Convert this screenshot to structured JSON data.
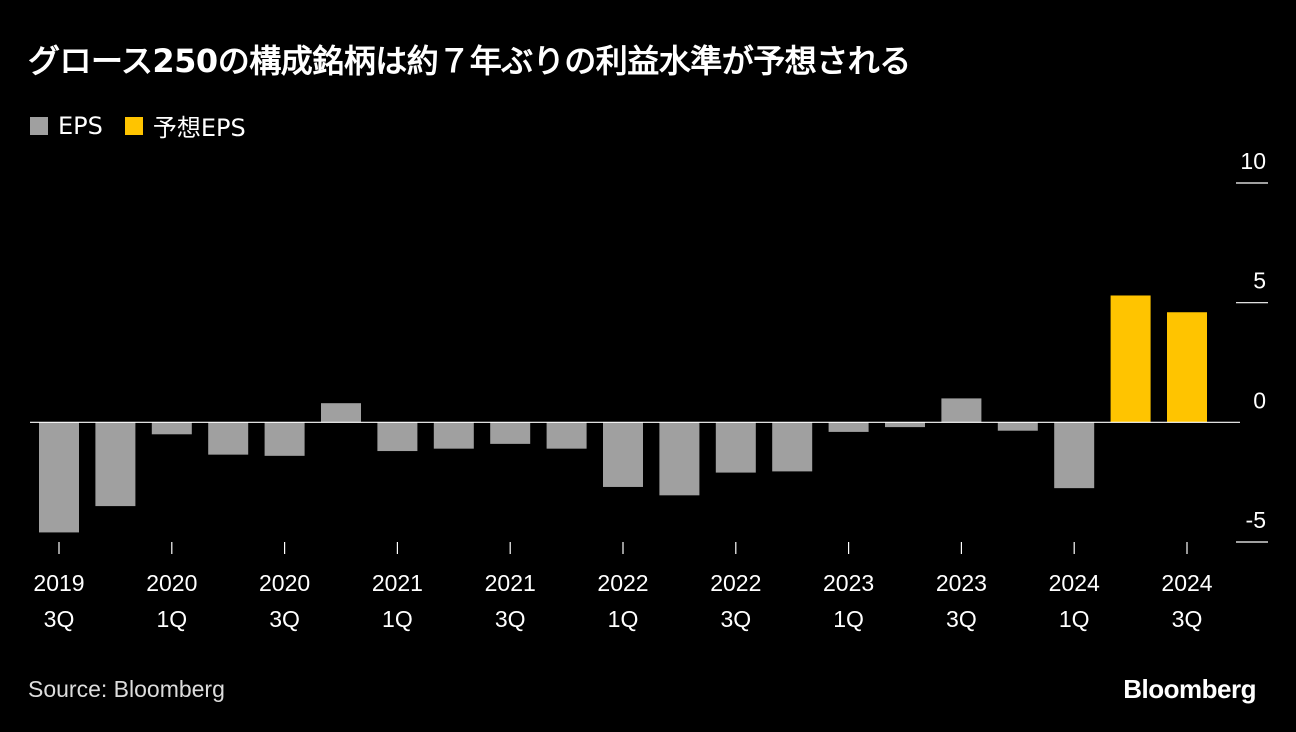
{
  "title": "グロース250の構成銘柄は約７年ぶりの利益水準が予想される",
  "legend": [
    {
      "label": "EPS",
      "color": "#a0a0a0"
    },
    {
      "label": "予想EPS",
      "color": "#ffc400"
    }
  ],
  "source": "Source: Bloomberg",
  "brand": "Bloomberg",
  "chart_data": {
    "type": "bar",
    "categories": [
      "2019 3Q",
      "2019 4Q",
      "2020 1Q",
      "2020 2Q",
      "2020 3Q",
      "2020 4Q",
      "2021 1Q",
      "2021 2Q",
      "2021 3Q",
      "2021 4Q",
      "2022 1Q",
      "2022 2Q",
      "2022 3Q",
      "2022 4Q",
      "2023 1Q",
      "2023 2Q",
      "2023 3Q",
      "2023 4Q",
      "2024 1Q",
      "2024 2Q",
      "2024 3Q"
    ],
    "series": [
      {
        "name": "EPS",
        "color": "#a0a0a0",
        "values": [
          -4.6,
          -3.5,
          -0.5,
          -1.35,
          -1.4,
          0.8,
          -1.2,
          -1.1,
          -0.9,
          -1.1,
          -2.7,
          -3.05,
          -2.1,
          -2.05,
          -0.4,
          -0.2,
          1.0,
          -0.35,
          -2.75,
          null,
          null
        ]
      },
      {
        "name": "予想EPS",
        "color": "#ffc400",
        "values": [
          null,
          null,
          null,
          null,
          null,
          null,
          null,
          null,
          null,
          null,
          null,
          null,
          null,
          null,
          null,
          null,
          null,
          null,
          null,
          5.3,
          4.6
        ]
      }
    ],
    "x_tick_labels": [
      {
        "index": 0,
        "year": "2019",
        "q": "3Q"
      },
      {
        "index": 2,
        "year": "2020",
        "q": "1Q"
      },
      {
        "index": 4,
        "year": "2020",
        "q": "3Q"
      },
      {
        "index": 6,
        "year": "2021",
        "q": "1Q"
      },
      {
        "index": 8,
        "year": "2021",
        "q": "3Q"
      },
      {
        "index": 10,
        "year": "2022",
        "q": "1Q"
      },
      {
        "index": 12,
        "year": "2022",
        "q": "3Q"
      },
      {
        "index": 14,
        "year": "2023",
        "q": "1Q"
      },
      {
        "index": 16,
        "year": "2023",
        "q": "3Q"
      },
      {
        "index": 18,
        "year": "2024",
        "q": "1Q"
      },
      {
        "index": 20,
        "year": "2024",
        "q": "3Q"
      }
    ],
    "y_ticks": [
      10,
      5,
      0,
      -5
    ],
    "ylim": [
      -5,
      10
    ],
    "y_axis_position": "right",
    "grid": false
  }
}
